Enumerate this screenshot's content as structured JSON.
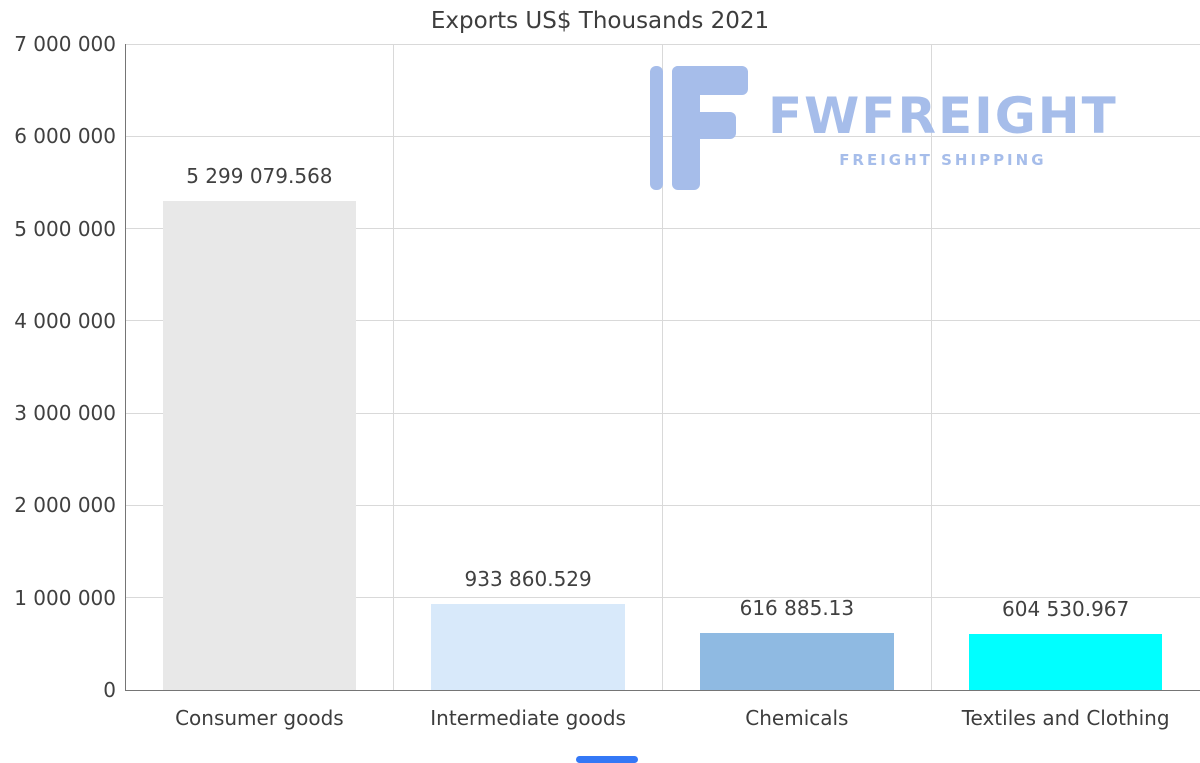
{
  "chart_data": {
    "type": "bar",
    "title": "Exports US$ Thousands 2021",
    "categories": [
      "Consumer goods",
      "Intermediate goods",
      "Chemicals",
      "Textiles and Clothing"
    ],
    "values": [
      5299079.568,
      933860.529,
      616885.13,
      604530.967
    ],
    "value_labels": [
      "5 299 079.568",
      "933 860.529",
      "616 885.13",
      "604 530.967"
    ],
    "bar_colors": [
      "#e8e8e8",
      "#d8e9fa",
      "#8fbae2",
      "#00ffff"
    ],
    "xlabel": "",
    "ylabel": "",
    "ylim": [
      0,
      7000000
    ],
    "ytick_interval": 1000000,
    "ytick_labels": [
      "7 000 000",
      "6 000 000",
      "5 000 000",
      "4 000 000",
      "3 000 000",
      "2 000 000",
      "1 000 000",
      "0"
    ],
    "grid": true,
    "legend_position": "none"
  },
  "watermark": {
    "brand": "FWFREIGHT",
    "tagline": "FREIGHT SHIPPING",
    "color": "#a6bdea"
  },
  "colors": {
    "title_text": "#3d3d3d",
    "axis_text": "#404040",
    "gridline": "#d9d9d9",
    "axis_line": "#757575",
    "background": "#ffffff",
    "scroll_thumb": "#3478f6"
  }
}
